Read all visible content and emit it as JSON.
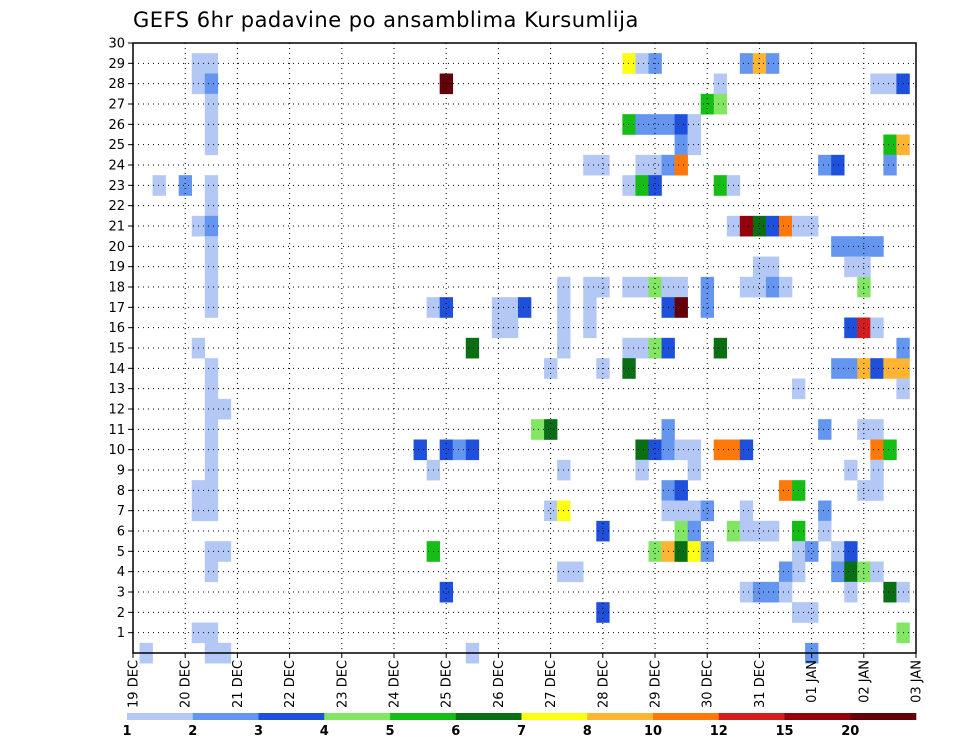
{
  "chart_data": {
    "type": "heatmap",
    "title": "GEFS 6hr padavine po ansamblima Kursumlija",
    "xlabel": "",
    "ylabel": "",
    "x_tick_labels": [
      "19 DEC",
      "20 DEC",
      "21 DEC",
      "22 DEC",
      "23 DEC",
      "24 DEC",
      "25 DEC",
      "26 DEC",
      "27 DEC",
      "28 DEC",
      "29 DEC",
      "30 DEC",
      "31 DEC",
      "01 JAN",
      "02 JAN",
      "03 JAN"
    ],
    "y_tick_labels": [
      "1",
      "2",
      "3",
      "4",
      "5",
      "6",
      "7",
      "8",
      "9",
      "10",
      "11",
      "12",
      "13",
      "14",
      "15",
      "16",
      "17",
      "18",
      "19",
      "20",
      "21",
      "22",
      "23",
      "24",
      "25",
      "26",
      "27",
      "28",
      "29",
      "30"
    ],
    "y_range": [
      0,
      30
    ],
    "x_range_days": [
      0,
      15
    ],
    "grid": true,
    "legend": "colorbar-bottom",
    "colorbar": {
      "boundary_labels": [
        "1",
        "2",
        "3",
        "4",
        "5",
        "6",
        "7",
        "8",
        "10",
        "12",
        "15",
        "20"
      ],
      "colors": [
        "#b4c8f5",
        "#6496f0",
        "#1e50dc",
        "#82e664",
        "#14be14",
        "#0a6e14",
        "#ffff14",
        "#ffb432",
        "#ff780a",
        "#d21e1e",
        "#96000a",
        "#64000a"
      ]
    },
    "cells": [
      {
        "day": 0.25,
        "member": 0,
        "bin": 0
      },
      {
        "day": 1.25,
        "member": 29,
        "bin": 0
      },
      {
        "day": 1.25,
        "member": 28,
        "bin": 0
      },
      {
        "day": 1.5,
        "member": 29,
        "bin": 0
      },
      {
        "day": 1.5,
        "member": 28,
        "bin": 1
      },
      {
        "day": 1.5,
        "member": 27,
        "bin": 0
      },
      {
        "day": 1.5,
        "member": 26,
        "bin": 0
      },
      {
        "day": 1.5,
        "member": 25,
        "bin": 0
      },
      {
        "day": 1.0,
        "member": 23,
        "bin": 1
      },
      {
        "day": 1.5,
        "member": 23,
        "bin": 0
      },
      {
        "day": 1.5,
        "member": 22,
        "bin": 0
      },
      {
        "day": 1.25,
        "member": 21,
        "bin": 0
      },
      {
        "day": 1.5,
        "member": 21,
        "bin": 1
      },
      {
        "day": 1.5,
        "member": 20,
        "bin": 0
      },
      {
        "day": 1.5,
        "member": 19,
        "bin": 0
      },
      {
        "day": 1.5,
        "member": 18,
        "bin": 0
      },
      {
        "day": 1.5,
        "member": 17,
        "bin": 0
      },
      {
        "day": 1.25,
        "member": 15,
        "bin": 0
      },
      {
        "day": 1.5,
        "member": 14,
        "bin": 0
      },
      {
        "day": 1.5,
        "member": 13,
        "bin": 0
      },
      {
        "day": 1.5,
        "member": 12,
        "bin": 0
      },
      {
        "day": 1.5,
        "member": 11,
        "bin": 0
      },
      {
        "day": 1.75,
        "member": 12,
        "bin": 0
      },
      {
        "day": 1.5,
        "member": 10,
        "bin": 0
      },
      {
        "day": 1.5,
        "member": 9,
        "bin": 0
      },
      {
        "day": 1.5,
        "member": 8,
        "bin": 0
      },
      {
        "day": 1.25,
        "member": 8,
        "bin": 0
      },
      {
        "day": 1.25,
        "member": 7,
        "bin": 0
      },
      {
        "day": 1.5,
        "member": 7,
        "bin": 0
      },
      {
        "day": 1.5,
        "member": 5,
        "bin": 0
      },
      {
        "day": 1.75,
        "member": 5,
        "bin": 0
      },
      {
        "day": 1.5,
        "member": 4,
        "bin": 0
      },
      {
        "day": 1.25,
        "member": 1,
        "bin": 0
      },
      {
        "day": 1.5,
        "member": 1,
        "bin": 0
      },
      {
        "day": 1.5,
        "member": 0,
        "bin": 0
      },
      {
        "day": 1.75,
        "member": 0,
        "bin": 0
      },
      {
        "day": 0.5,
        "member": 23,
        "bin": 0
      },
      {
        "day": 6.0,
        "member": 28,
        "bin": 11
      },
      {
        "day": 5.75,
        "member": 17,
        "bin": 0
      },
      {
        "day": 6.0,
        "member": 17,
        "bin": 2
      },
      {
        "day": 5.5,
        "member": 10,
        "bin": 2
      },
      {
        "day": 6.0,
        "member": 10,
        "bin": 2
      },
      {
        "day": 6.25,
        "member": 10,
        "bin": 1
      },
      {
        "day": 6.5,
        "member": 10,
        "bin": 2
      },
      {
        "day": 5.75,
        "member": 9,
        "bin": 0
      },
      {
        "day": 5.75,
        "member": 5,
        "bin": 4
      },
      {
        "day": 6.0,
        "member": 3,
        "bin": 2
      },
      {
        "day": 6.5,
        "member": 15,
        "bin": 5
      },
      {
        "day": 6.5,
        "member": 0,
        "bin": 0
      },
      {
        "day": 7.0,
        "member": 17,
        "bin": 0
      },
      {
        "day": 7.25,
        "member": 17,
        "bin": 0
      },
      {
        "day": 7.5,
        "member": 17,
        "bin": 2
      },
      {
        "day": 7.0,
        "member": 16,
        "bin": 0
      },
      {
        "day": 7.25,
        "member": 16,
        "bin": 0
      },
      {
        "day": 7.75,
        "member": 11,
        "bin": 3
      },
      {
        "day": 8.0,
        "member": 11,
        "bin": 5
      },
      {
        "day": 8.0,
        "member": 14,
        "bin": 0
      },
      {
        "day": 8.25,
        "member": 18,
        "bin": 0
      },
      {
        "day": 8.25,
        "member": 17,
        "bin": 0
      },
      {
        "day": 8.25,
        "member": 16,
        "bin": 0
      },
      {
        "day": 8.25,
        "member": 15,
        "bin": 0
      },
      {
        "day": 8.25,
        "member": 9,
        "bin": 0
      },
      {
        "day": 8.0,
        "member": 7,
        "bin": 0
      },
      {
        "day": 8.25,
        "member": 7,
        "bin": 6
      },
      {
        "day": 8.25,
        "member": 4,
        "bin": 0
      },
      {
        "day": 8.5,
        "member": 4,
        "bin": 0
      },
      {
        "day": 8.75,
        "member": 17,
        "bin": 0
      },
      {
        "day": 8.75,
        "member": 16,
        "bin": 0
      },
      {
        "day": 9.0,
        "member": 24,
        "bin": 0
      },
      {
        "day": 8.75,
        "member": 24,
        "bin": 0
      },
      {
        "day": 8.75,
        "member": 18,
        "bin": 0
      },
      {
        "day": 9.0,
        "member": 18,
        "bin": 0
      },
      {
        "day": 9.0,
        "member": 14,
        "bin": 0
      },
      {
        "day": 9.0,
        "member": 6,
        "bin": 2
      },
      {
        "day": 9.0,
        "member": 2,
        "bin": 2
      },
      {
        "day": 9.5,
        "member": 29,
        "bin": 6
      },
      {
        "day": 9.75,
        "member": 29,
        "bin": 0
      },
      {
        "day": 10.0,
        "member": 29,
        "bin": 1
      },
      {
        "day": 9.5,
        "member": 26,
        "bin": 4
      },
      {
        "day": 9.75,
        "member": 26,
        "bin": 1
      },
      {
        "day": 10.0,
        "member": 26,
        "bin": 1
      },
      {
        "day": 10.25,
        "member": 26,
        "bin": 1
      },
      {
        "day": 10.5,
        "member": 26,
        "bin": 2
      },
      {
        "day": 10.5,
        "member": 25,
        "bin": 1
      },
      {
        "day": 10.75,
        "member": 25,
        "bin": 0
      },
      {
        "day": 10.75,
        "member": 26,
        "bin": 0
      },
      {
        "day": 9.75,
        "member": 24,
        "bin": 0
      },
      {
        "day": 10.0,
        "member": 24,
        "bin": 0
      },
      {
        "day": 10.25,
        "member": 24,
        "bin": 1
      },
      {
        "day": 10.5,
        "member": 24,
        "bin": 8
      },
      {
        "day": 9.5,
        "member": 23,
        "bin": 0
      },
      {
        "day": 9.75,
        "member": 23,
        "bin": 4
      },
      {
        "day": 10.0,
        "member": 23,
        "bin": 2
      },
      {
        "day": 9.5,
        "member": 18,
        "bin": 0
      },
      {
        "day": 9.75,
        "member": 18,
        "bin": 0
      },
      {
        "day": 10.0,
        "member": 18,
        "bin": 3
      },
      {
        "day": 10.25,
        "member": 18,
        "bin": 0
      },
      {
        "day": 10.5,
        "member": 18,
        "bin": 0
      },
      {
        "day": 10.25,
        "member": 17,
        "bin": 2
      },
      {
        "day": 10.5,
        "member": 17,
        "bin": 11
      },
      {
        "day": 11.0,
        "member": 17,
        "bin": 1
      },
      {
        "day": 9.5,
        "member": 15,
        "bin": 0
      },
      {
        "day": 9.75,
        "member": 15,
        "bin": 0
      },
      {
        "day": 10.0,
        "member": 15,
        "bin": 3
      },
      {
        "day": 10.25,
        "member": 15,
        "bin": 2
      },
      {
        "day": 9.5,
        "member": 14,
        "bin": 5
      },
      {
        "day": 10.25,
        "member": 11,
        "bin": 1
      },
      {
        "day": 9.75,
        "member": 10,
        "bin": 5
      },
      {
        "day": 10.0,
        "member": 10,
        "bin": 2
      },
      {
        "day": 10.25,
        "member": 10,
        "bin": 1
      },
      {
        "day": 10.5,
        "member": 10,
        "bin": 0
      },
      {
        "day": 10.75,
        "member": 10,
        "bin": 0
      },
      {
        "day": 9.75,
        "member": 9,
        "bin": 0
      },
      {
        "day": 10.75,
        "member": 9,
        "bin": 0
      },
      {
        "day": 10.25,
        "member": 8,
        "bin": 1
      },
      {
        "day": 10.5,
        "member": 8,
        "bin": 2
      },
      {
        "day": 10.25,
        "member": 7,
        "bin": 0
      },
      {
        "day": 10.5,
        "member": 7,
        "bin": 0
      },
      {
        "day": 10.75,
        "member": 7,
        "bin": 0
      },
      {
        "day": 11.0,
        "member": 7,
        "bin": 1
      },
      {
        "day": 10.5,
        "member": 6,
        "bin": 3
      },
      {
        "day": 10.75,
        "member": 6,
        "bin": 1
      },
      {
        "day": 10.5,
        "member": 5,
        "bin": 3
      },
      {
        "day": 10.0,
        "member": 5,
        "bin": 3
      },
      {
        "day": 10.25,
        "member": 5,
        "bin": 7
      },
      {
        "day": 10.5,
        "member": 5,
        "bin": 5
      },
      {
        "day": 10.75,
        "member": 5,
        "bin": 6
      },
      {
        "day": 11.0,
        "member": 5,
        "bin": 1
      },
      {
        "day": 11.25,
        "member": 28,
        "bin": 0
      },
      {
        "day": 11.0,
        "member": 27,
        "bin": 4
      },
      {
        "day": 11.25,
        "member": 27,
        "bin": 3
      },
      {
        "day": 11.25,
        "member": 23,
        "bin": 4
      },
      {
        "day": 11.5,
        "member": 23,
        "bin": 0
      },
      {
        "day": 11.75,
        "member": 29,
        "bin": 1
      },
      {
        "day": 12.0,
        "member": 29,
        "bin": 7
      },
      {
        "day": 12.25,
        "member": 29,
        "bin": 1
      },
      {
        "day": 11.5,
        "member": 21,
        "bin": 0
      },
      {
        "day": 11.75,
        "member": 21,
        "bin": 10
      },
      {
        "day": 12.0,
        "member": 21,
        "bin": 5
      },
      {
        "day": 12.25,
        "member": 21,
        "bin": 2
      },
      {
        "day": 12.5,
        "member": 21,
        "bin": 8
      },
      {
        "day": 12.75,
        "member": 21,
        "bin": 0
      },
      {
        "day": 13.0,
        "member": 21,
        "bin": 0
      },
      {
        "day": 11.25,
        "member": 15,
        "bin": 5
      },
      {
        "day": 12.0,
        "member": 19,
        "bin": 0
      },
      {
        "day": 12.25,
        "member": 19,
        "bin": 0
      },
      {
        "day": 12.0,
        "member": 18,
        "bin": 0
      },
      {
        "day": 12.25,
        "member": 18,
        "bin": 1
      },
      {
        "day": 12.5,
        "member": 18,
        "bin": 0
      },
      {
        "day": 11.75,
        "member": 18,
        "bin": 0
      },
      {
        "day": 11.0,
        "member": 18,
        "bin": 1
      },
      {
        "day": 12.75,
        "member": 13,
        "bin": 0
      },
      {
        "day": 11.25,
        "member": 10,
        "bin": 8
      },
      {
        "day": 11.5,
        "member": 10,
        "bin": 8
      },
      {
        "day": 11.75,
        "member": 10,
        "bin": 2
      },
      {
        "day": 12.5,
        "member": 8,
        "bin": 8
      },
      {
        "day": 12.75,
        "member": 8,
        "bin": 4
      },
      {
        "day": 11.75,
        "member": 7,
        "bin": 0
      },
      {
        "day": 11.5,
        "member": 6,
        "bin": 3
      },
      {
        "day": 11.75,
        "member": 6,
        "bin": 0
      },
      {
        "day": 12.0,
        "member": 6,
        "bin": 0
      },
      {
        "day": 12.25,
        "member": 6,
        "bin": 0
      },
      {
        "day": 12.75,
        "member": 6,
        "bin": 4
      },
      {
        "day": 12.75,
        "member": 5,
        "bin": 0
      },
      {
        "day": 12.75,
        "member": 4,
        "bin": 0
      },
      {
        "day": 13.0,
        "member": 5,
        "bin": 1
      },
      {
        "day": 12.5,
        "member": 4,
        "bin": 1
      },
      {
        "day": 12.25,
        "member": 3,
        "bin": 1
      },
      {
        "day": 12.5,
        "member": 3,
        "bin": 0
      },
      {
        "day": 11.75,
        "member": 3,
        "bin": 0
      },
      {
        "day": 12.0,
        "member": 3,
        "bin": 1
      },
      {
        "day": 13.0,
        "member": 2,
        "bin": 0
      },
      {
        "day": 12.75,
        "member": 2,
        "bin": 0
      },
      {
        "day": 13.25,
        "member": 24,
        "bin": 1
      },
      {
        "day": 13.5,
        "member": 24,
        "bin": 2
      },
      {
        "day": 13.5,
        "member": 20,
        "bin": 1
      },
      {
        "day": 13.75,
        "member": 20,
        "bin": 1
      },
      {
        "day": 14.0,
        "member": 20,
        "bin": 1
      },
      {
        "day": 14.25,
        "member": 20,
        "bin": 1
      },
      {
        "day": 13.75,
        "member": 19,
        "bin": 0
      },
      {
        "day": 14.0,
        "member": 18,
        "bin": 3
      },
      {
        "day": 14.0,
        "member": 19,
        "bin": 0
      },
      {
        "day": 13.75,
        "member": 16,
        "bin": 2
      },
      {
        "day": 14.0,
        "member": 16,
        "bin": 9
      },
      {
        "day": 14.25,
        "member": 16,
        "bin": 0
      },
      {
        "day": 13.5,
        "member": 14,
        "bin": 1
      },
      {
        "day": 13.75,
        "member": 14,
        "bin": 1
      },
      {
        "day": 14.0,
        "member": 14,
        "bin": 7
      },
      {
        "day": 14.25,
        "member": 14,
        "bin": 2
      },
      {
        "day": 14.5,
        "member": 14,
        "bin": 7
      },
      {
        "day": 14.75,
        "member": 14,
        "bin": 7
      },
      {
        "day": 13.25,
        "member": 11,
        "bin": 1
      },
      {
        "day": 14.0,
        "member": 11,
        "bin": 0
      },
      {
        "day": 14.25,
        "member": 11,
        "bin": 0
      },
      {
        "day": 14.25,
        "member": 10,
        "bin": 8
      },
      {
        "day": 14.5,
        "member": 10,
        "bin": 4
      },
      {
        "day": 13.25,
        "member": 7,
        "bin": 1
      },
      {
        "day": 13.25,
        "member": 6,
        "bin": 0
      },
      {
        "day": 13.5,
        "member": 5,
        "bin": 0
      },
      {
        "day": 13.75,
        "member": 5,
        "bin": 2
      },
      {
        "day": 13.5,
        "member": 4,
        "bin": 1
      },
      {
        "day": 13.75,
        "member": 4,
        "bin": 5
      },
      {
        "day": 14.0,
        "member": 4,
        "bin": 3
      },
      {
        "day": 14.25,
        "member": 4,
        "bin": 0
      },
      {
        "day": 13.75,
        "member": 3,
        "bin": 0
      },
      {
        "day": 14.5,
        "member": 3,
        "bin": 5
      },
      {
        "day": 14.75,
        "member": 3,
        "bin": 0
      },
      {
        "day": 14.25,
        "member": 9,
        "bin": 0
      },
      {
        "day": 14.25,
        "member": 8,
        "bin": 0
      },
      {
        "day": 14.0,
        "member": 8,
        "bin": 0
      },
      {
        "day": 13.75,
        "member": 9,
        "bin": 0
      },
      {
        "day": 14.0,
        "member": 19,
        "bin": 0
      },
      {
        "day": 14.5,
        "member": 28,
        "bin": 0
      },
      {
        "day": 14.75,
        "member": 28,
        "bin": 2
      },
      {
        "day": 14.25,
        "member": 28,
        "bin": 0
      },
      {
        "day": 14.5,
        "member": 25,
        "bin": 4
      },
      {
        "day": 14.75,
        "member": 25,
        "bin": 7
      },
      {
        "day": 14.5,
        "member": 24,
        "bin": 1
      },
      {
        "day": 14.75,
        "member": 15,
        "bin": 1
      },
      {
        "day": 14.75,
        "member": 13,
        "bin": 0
      },
      {
        "day": 14.75,
        "member": 1,
        "bin": 3
      },
      {
        "day": 13.0,
        "member": 0,
        "bin": 1
      }
    ]
  }
}
